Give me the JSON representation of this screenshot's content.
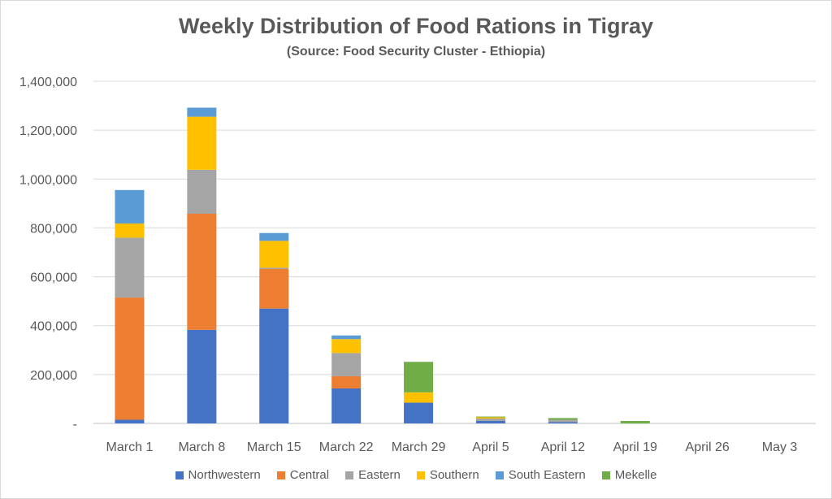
{
  "chart_data": {
    "type": "bar",
    "stacked": true,
    "title": "Weekly Distribution of Food Rations in Tigray",
    "subtitle": "(Source: Food Security Cluster - Ethiopia)",
    "categories": [
      "March 1",
      "March 8",
      "March 15",
      "March 22",
      "March 29",
      "April 5",
      "April 12",
      "April 19",
      "April 26",
      "May 3"
    ],
    "ylim": [
      0,
      1400000
    ],
    "yticks": [
      {
        "value": 0,
        "label": "-"
      },
      {
        "value": 200000,
        "label": "200,000"
      },
      {
        "value": 400000,
        "label": "400,000"
      },
      {
        "value": 600000,
        "label": "600,000"
      },
      {
        "value": 800000,
        "label": "800,000"
      },
      {
        "value": 1000000,
        "label": "1,000,000"
      },
      {
        "value": 1200000,
        "label": "1,200,000"
      },
      {
        "value": 1400000,
        "label": "1,400,000"
      }
    ],
    "grid": true,
    "legend_position": "bottom",
    "series": [
      {
        "name": "Northwestern",
        "color": "#4472C4",
        "values": [
          15000,
          383000,
          470000,
          143000,
          85000,
          10000,
          5000,
          0,
          0,
          0
        ]
      },
      {
        "name": "Central",
        "color": "#ED7D31",
        "values": [
          500000,
          475000,
          162000,
          50000,
          0,
          0,
          0,
          0,
          0,
          0
        ]
      },
      {
        "name": "Eastern",
        "color": "#A5A5A5",
        "values": [
          245000,
          180000,
          5000,
          95000,
          0,
          10000,
          10000,
          0,
          0,
          0
        ]
      },
      {
        "name": "Southern",
        "color": "#FFC000",
        "values": [
          58000,
          217000,
          110000,
          57000,
          42000,
          5000,
          0,
          0,
          0,
          0
        ]
      },
      {
        "name": "South Eastern",
        "color": "#5B9BD5",
        "values": [
          137000,
          37000,
          32000,
          15000,
          0,
          0,
          0,
          0,
          0,
          0
        ]
      },
      {
        "name": "Mekelle",
        "color": "#70AD47",
        "values": [
          0,
          0,
          0,
          0,
          125000,
          3000,
          7000,
          10000,
          0,
          0
        ]
      }
    ]
  }
}
